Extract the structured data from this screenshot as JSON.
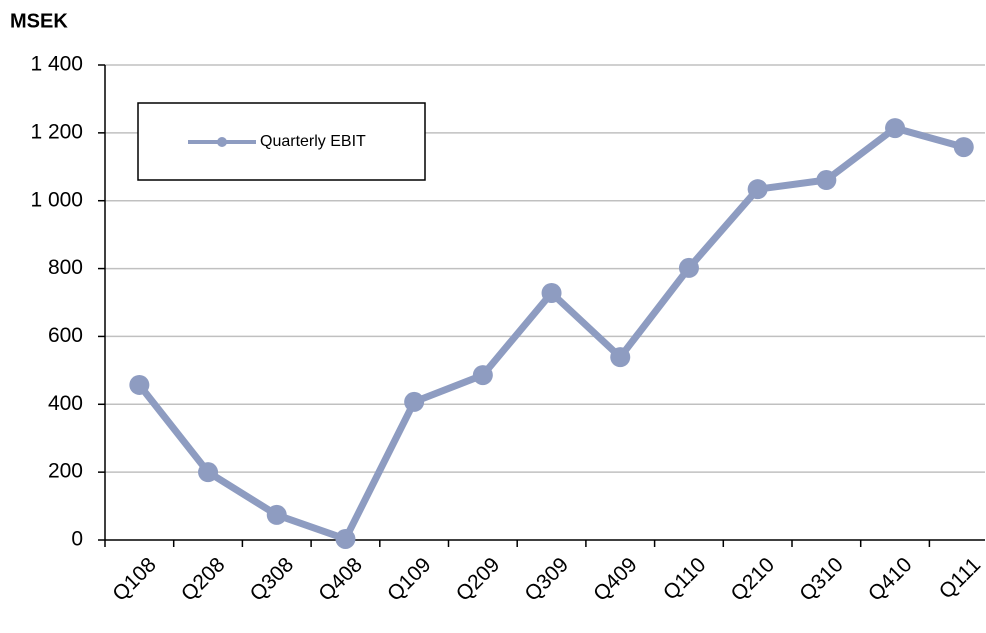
{
  "chart_data": {
    "type": "line",
    "y_label": "MSEK",
    "categories": [
      "Q108",
      "Q208",
      "Q308",
      "Q408",
      "Q109",
      "Q209",
      "Q309",
      "Q409",
      "Q110",
      "Q210",
      "Q310",
      "Q410",
      "Q111"
    ],
    "series": [
      {
        "name": "Quarterly EBIT",
        "color": "#8e9cc1",
        "values": [
          457,
          200,
          74,
          3,
          407,
          486,
          728,
          539,
          802,
          1034,
          1061,
          1214,
          1158
        ]
      }
    ],
    "ylim": [
      0,
      1400
    ],
    "yticks": [
      0,
      200,
      400,
      600,
      800,
      {
        "value": 1000,
        "label": "1 000"
      },
      {
        "value": 1200,
        "label": "1 200"
      },
      {
        "value": 1400,
        "label": "1 400"
      }
    ],
    "grid": true,
    "legend": "upper left"
  }
}
